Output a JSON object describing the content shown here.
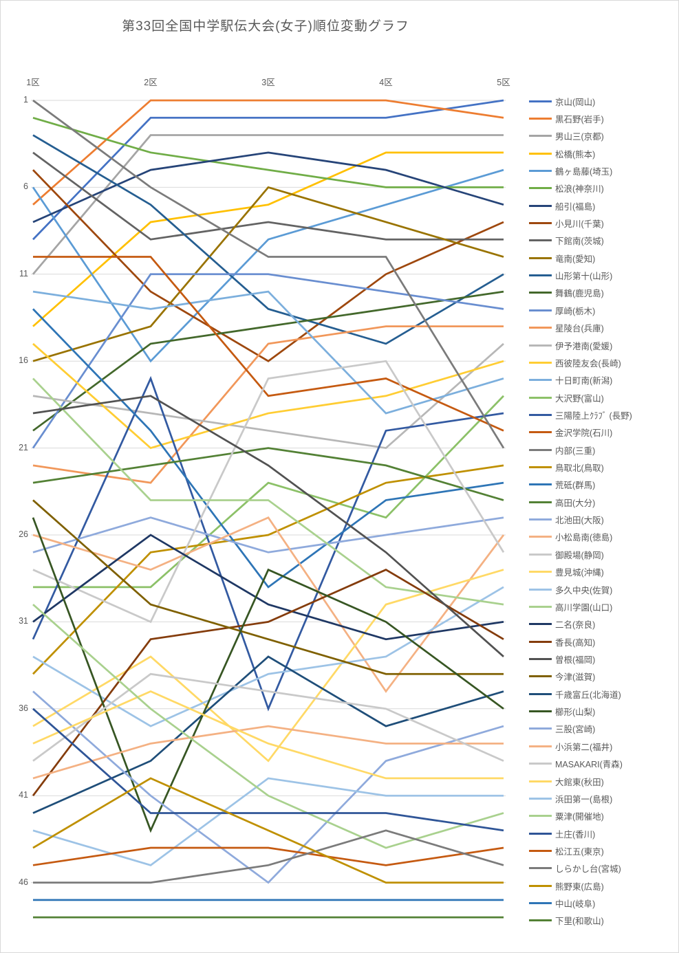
{
  "title": "第33回全国中学駅伝大会(女子)順位変動グラフ",
  "chart_data": {
    "type": "line",
    "subtype": "bump-rank-chart",
    "title": "第33回全国中学駅伝大会(女子)順位変動グラフ",
    "categories": [
      "1区",
      "2区",
      "3区",
      "4区",
      "5区"
    ],
    "xlabel": "",
    "ylabel": "",
    "y_ticks": [
      1,
      6,
      11,
      16,
      21,
      26,
      31,
      36,
      41,
      46
    ],
    "ylim": [
      1,
      48
    ],
    "y_axis_inverted": true,
    "grid": "horizontal",
    "legend_position": "right",
    "gridline_color": "#D9D9D9",
    "text_color": "#595959",
    "series": [
      {
        "name": "京山(岡山)",
        "color": "#4472C4",
        "values": [
          9,
          2,
          2,
          2,
          1
        ]
      },
      {
        "name": "黒石野(岩手)",
        "color": "#ED7D31",
        "values": [
          7,
          1,
          1,
          1,
          2
        ]
      },
      {
        "name": "男山三(京都)",
        "color": "#A5A5A5",
        "values": [
          11,
          3,
          3,
          3,
          3
        ]
      },
      {
        "name": "松橋(熊本)",
        "color": "#FFC000",
        "values": [
          14,
          8,
          7,
          4,
          4
        ]
      },
      {
        "name": "鶴ヶ島藤(埼玉)",
        "color": "#5B9BD5",
        "values": [
          6,
          16,
          9,
          7,
          5
        ]
      },
      {
        "name": "松浪(神奈川)",
        "color": "#70AD47",
        "values": [
          2,
          4,
          5,
          6,
          6
        ]
      },
      {
        "name": "船引(福島)",
        "color": "#264478",
        "values": [
          8,
          5,
          4,
          5,
          7
        ]
      },
      {
        "name": "小見川(千葉)",
        "color": "#9E480E",
        "values": [
          5,
          12,
          16,
          11,
          8
        ]
      },
      {
        "name": "下館南(茨城)",
        "color": "#636363",
        "values": [
          4,
          9,
          8,
          9,
          9
        ]
      },
      {
        "name": "竜南(愛知)",
        "color": "#997300",
        "values": [
          16,
          14,
          6,
          8,
          10
        ]
      },
      {
        "name": "山形第十(山形)",
        "color": "#255E91",
        "values": [
          3,
          7,
          13,
          15,
          11
        ]
      },
      {
        "name": "舞鶴(鹿児島)",
        "color": "#43682B",
        "values": [
          20,
          15,
          14,
          13,
          12
        ]
      },
      {
        "name": "厚崎(栃木)",
        "color": "#698ED0",
        "values": [
          21,
          11,
          11,
          12,
          13
        ]
      },
      {
        "name": "星陵台(兵庫)",
        "color": "#F1975A",
        "values": [
          22,
          23,
          15,
          14,
          14
        ]
      },
      {
        "name": "伊予港南(愛媛)",
        "color": "#B7B7B7",
        "values": [
          18,
          19,
          20,
          21,
          15
        ]
      },
      {
        "name": "西彼陸友会(長崎)",
        "color": "#FFCD33",
        "values": [
          15,
          21,
          19,
          18,
          16
        ]
      },
      {
        "name": "十日町南(新潟)",
        "color": "#7CAFDD",
        "values": [
          12,
          13,
          12,
          19,
          17
        ]
      },
      {
        "name": "大沢野(富山)",
        "color": "#8CC168",
        "values": [
          29,
          29,
          23,
          25,
          18
        ]
      },
      {
        "name": "三陽陸上ｸﾗﾌﾞ (長野)",
        "color": "#335AA1",
        "values": [
          32,
          17,
          36,
          20,
          19
        ]
      },
      {
        "name": "金沢学院(石川)",
        "color": "#C55A11",
        "values": [
          10,
          10,
          18,
          17,
          20
        ]
      },
      {
        "name": "内部(三重)",
        "color": "#7B7B7B",
        "values": [
          1,
          6,
          10,
          10,
          21
        ]
      },
      {
        "name": "鳥取北(鳥取)",
        "color": "#BF9000",
        "values": [
          34,
          27,
          26,
          23,
          22
        ]
      },
      {
        "name": "荒砥(群馬)",
        "color": "#2E75B6",
        "values": [
          13,
          20,
          29,
          24,
          23
        ]
      },
      {
        "name": "高田(大分)",
        "color": "#538135",
        "values": [
          23,
          22,
          21,
          22,
          24
        ]
      },
      {
        "name": "北池田(大阪)",
        "color": "#8FAADC",
        "values": [
          27,
          25,
          27,
          26,
          25
        ]
      },
      {
        "name": "小松島南(徳島)",
        "color": "#F4B183",
        "values": [
          26,
          28,
          25,
          35,
          26
        ]
      },
      {
        "name": "御殿場(静岡)",
        "color": "#C9C9C9",
        "values": [
          28,
          31,
          17,
          16,
          27
        ]
      },
      {
        "name": "豊見城(沖縄)",
        "color": "#FFD966",
        "values": [
          37,
          33,
          39,
          30,
          28
        ]
      },
      {
        "name": "多久中央(佐賀)",
        "color": "#9DC3E6",
        "values": [
          33,
          37,
          34,
          33,
          29
        ]
      },
      {
        "name": "高川学園(山口)",
        "color": "#A9D18E",
        "values": [
          17,
          24,
          24,
          29,
          30
        ]
      },
      {
        "name": "二名(奈良)",
        "color": "#1F3864",
        "values": [
          31,
          26,
          30,
          32,
          31
        ]
      },
      {
        "name": "香長(高知)",
        "color": "#843C0C",
        "values": [
          41,
          32,
          31,
          28,
          32
        ]
      },
      {
        "name": "曽根(福岡)",
        "color": "#525252",
        "values": [
          19,
          18,
          22,
          27,
          33
        ]
      },
      {
        "name": "今津(滋賀)",
        "color": "#7F6000",
        "values": [
          24,
          30,
          32,
          34,
          34
        ]
      },
      {
        "name": "千歳富丘(北海道)",
        "color": "#1F4E79",
        "values": [
          42,
          39,
          33,
          37,
          35
        ]
      },
      {
        "name": "櫛形(山梨)",
        "color": "#375623",
        "values": [
          25,
          43,
          28,
          31,
          36
        ]
      },
      {
        "name": "三股(宮崎)",
        "color": "#8FAADC",
        "values": [
          35,
          41,
          46,
          39,
          37
        ]
      },
      {
        "name": "小浜第二(福井)",
        "color": "#F4B183",
        "values": [
          40,
          38,
          37,
          38,
          38
        ]
      },
      {
        "name": "MASAKARI(青森)",
        "color": "#C9C9C9",
        "values": [
          39,
          34,
          35,
          36,
          39
        ]
      },
      {
        "name": "大館東(秋田)",
        "color": "#FFD966",
        "values": [
          38,
          35,
          38,
          40,
          40
        ]
      },
      {
        "name": "浜田第一(島根)",
        "color": "#9DC3E6",
        "values": [
          43,
          45,
          40,
          41,
          41
        ]
      },
      {
        "name": "粟津(開催地)",
        "color": "#A9D18E",
        "values": [
          30,
          36,
          41,
          44,
          42
        ]
      },
      {
        "name": "土庄(香川)",
        "color": "#2F5597",
        "values": [
          36,
          42,
          42,
          42,
          43
        ]
      },
      {
        "name": "松江五(東京)",
        "color": "#C55A11",
        "values": [
          45,
          44,
          44,
          45,
          44
        ]
      },
      {
        "name": "しらかし台(宮城)",
        "color": "#7B7B7B",
        "values": [
          46,
          46,
          45,
          43,
          45
        ]
      },
      {
        "name": "熊野東(広島)",
        "color": "#BF9000",
        "values": [
          44,
          40,
          43,
          46,
          46
        ]
      },
      {
        "name": "中山(岐阜)",
        "color": "#2E75B6",
        "values": [
          47,
          47,
          47,
          47,
          47
        ]
      },
      {
        "name": "下里(和歌山)",
        "color": "#538135",
        "values": [
          48,
          48,
          48,
          48,
          48
        ]
      }
    ]
  }
}
